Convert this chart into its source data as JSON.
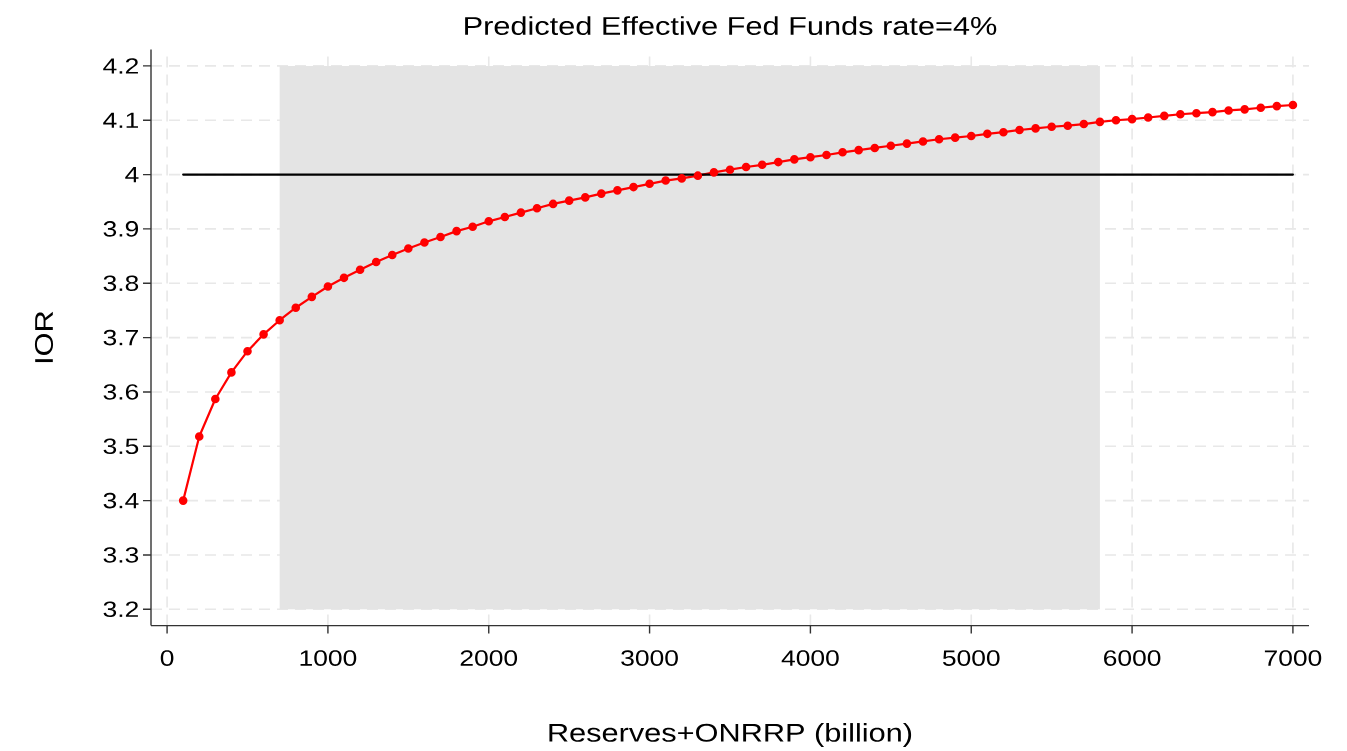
{
  "chart_data": {
    "type": "line",
    "title": "Predicted Effective Fed Funds rate=4%",
    "xlabel": "Reserves+ONRRP (billion)",
    "ylabel": "IOR",
    "xlim": [
      -100,
      7100
    ],
    "ylim": [
      3.17,
      4.23
    ],
    "xticks": [
      0,
      1000,
      2000,
      3000,
      4000,
      5000,
      6000,
      7000
    ],
    "yticks": [
      3.2,
      3.3,
      3.4,
      3.5,
      3.6,
      3.7,
      3.8,
      3.9,
      4,
      4.1,
      4.2
    ],
    "grid": true,
    "marker": "circle",
    "bands": [
      {
        "axis": "x",
        "from": 700,
        "to": 5800,
        "color": "#e4e4e4"
      }
    ],
    "series": [
      {
        "color": "#ff0000",
        "x": [
          100,
          200,
          300,
          400,
          500,
          600,
          700,
          800,
          900,
          1000,
          1100,
          1200,
          1300,
          1400,
          1500,
          1600,
          1700,
          1800,
          1900,
          2000,
          2100,
          2200,
          2300,
          2400,
          2500,
          2600,
          2700,
          2800,
          2900,
          3000,
          3100,
          3200,
          3300,
          3400,
          3500,
          3600,
          3700,
          3800,
          3900,
          4000,
          4100,
          4200,
          4300,
          4400,
          4500,
          4600,
          4700,
          4800,
          4900,
          5000,
          5100,
          5200,
          5300,
          5400,
          5500,
          5600,
          5700,
          5800,
          5900,
          6000,
          6100,
          6200,
          6300,
          6400,
          6500,
          6600,
          6700,
          6800,
          6900,
          7000
        ],
        "values": [
          3.4,
          3.518,
          3.587,
          3.636,
          3.675,
          3.706,
          3.732,
          3.755,
          3.775,
          3.794,
          3.81,
          3.825,
          3.839,
          3.852,
          3.864,
          3.875,
          3.885,
          3.896,
          3.904,
          3.914,
          3.922,
          3.93,
          3.938,
          3.946,
          3.952,
          3.958,
          3.965,
          3.971,
          3.977,
          3.983,
          3.989,
          3.993,
          3.998,
          4.004,
          4.009,
          4.014,
          4.018,
          4.023,
          4.028,
          4.032,
          4.036,
          4.041,
          4.045,
          4.049,
          4.053,
          4.057,
          4.061,
          4.065,
          4.068,
          4.071,
          4.075,
          4.078,
          4.082,
          4.085,
          4.088,
          4.09,
          4.093,
          4.097,
          4.1,
          4.102,
          4.105,
          4.108,
          4.111,
          4.113,
          4.115,
          4.118,
          4.12,
          4.123,
          4.126,
          4.128
        ]
      },
      {
        "color": "#000000",
        "marker": "none",
        "x": [
          100,
          7000
        ],
        "values": [
          4,
          4
        ]
      }
    ]
  }
}
